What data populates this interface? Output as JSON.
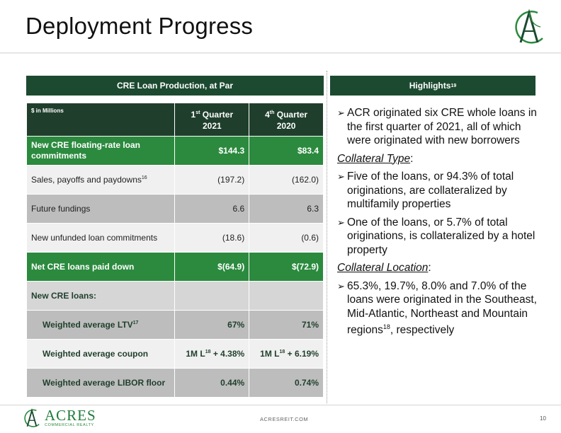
{
  "title": "Deployment Progress",
  "left_panel": {
    "header": "CRE Loan Production, at Par",
    "units_label": "$ in Millions",
    "columns": [
      {
        "label": "1",
        "sup": "st",
        "label_rest": " Quarter",
        "year": "2021"
      },
      {
        "label": "4",
        "sup": "th",
        "label_rest": " Quarter",
        "year": "2020"
      }
    ],
    "rows": [
      {
        "label": "New CRE floating-rate loan commitments",
        "sup": "",
        "q1": "$144.3",
        "q4": "$83.4"
      },
      {
        "label": "Sales, payoffs and paydowns",
        "sup": "16",
        "q1": "(197.2)",
        "q4": "(162.0)"
      },
      {
        "label": "Future fundings",
        "sup": "",
        "q1": "6.6",
        "q4": "6.3"
      },
      {
        "label": "New unfunded loan commitments",
        "sup": "",
        "q1": "(18.6)",
        "q4": "(0.6)"
      },
      {
        "label": "Net CRE loans paid down",
        "sup": "",
        "q1": "$(64.9)",
        "q4": "$(72.9)"
      },
      {
        "label": "New CRE loans:",
        "sup": "",
        "q1": "",
        "q4": ""
      },
      {
        "label": "Weighted average LTV",
        "sup": "17",
        "q1": "67%",
        "q4": "71%"
      },
      {
        "label": "Weighted average coupon",
        "sup": "",
        "q1_pre": "1M L",
        "q1_sup": "18",
        "q1_post": " + 4.38%",
        "q4_pre": "1M L",
        "q4_sup": "18",
        "q4_post": " + 6.19%"
      },
      {
        "label": "Weighted average LIBOR floor",
        "sup": "",
        "q1": "0.44%",
        "q4": "0.74%"
      }
    ]
  },
  "right_panel": {
    "header": "Highlights",
    "header_sup": "19",
    "bullet_1": "ACR originated six CRE whole loans in the first quarter of 2021, all of which were originated with new borrowers",
    "heading_1": "Collateral Type",
    "heading_1_colon": ":",
    "bullet_2": "Five of the loans, or 94.3% of total originations, are collateralized by multifamily properties",
    "bullet_3": "One of the loans, or 5.7% of total originations, is collateralized by a hotel property",
    "heading_2": "Collateral Location",
    "heading_2_colon": ":",
    "bullet_4": "65.3%, 19.7%, 8.0% and 7.0% of the loans were originated in the Southeast, Mid-Atlantic, Northeast and Mountain regions",
    "bullet_4_sup": "18",
    "bullet_4_end": ", respectively"
  },
  "footer": {
    "brand_name": "ACRES",
    "brand_sub": "COMMERCIAL REALTY",
    "website": "ACRESREIT.COM",
    "page_number": "10"
  },
  "colors": {
    "dark_green": "#1c4a30",
    "accent_green": "#2b8a3e",
    "light_gray": "#f0f0f0",
    "mid_gray": "#bdbdbd"
  },
  "icons": {
    "logo": "acres-a-logo-icon",
    "bullet": "arrow-bullet-icon"
  }
}
